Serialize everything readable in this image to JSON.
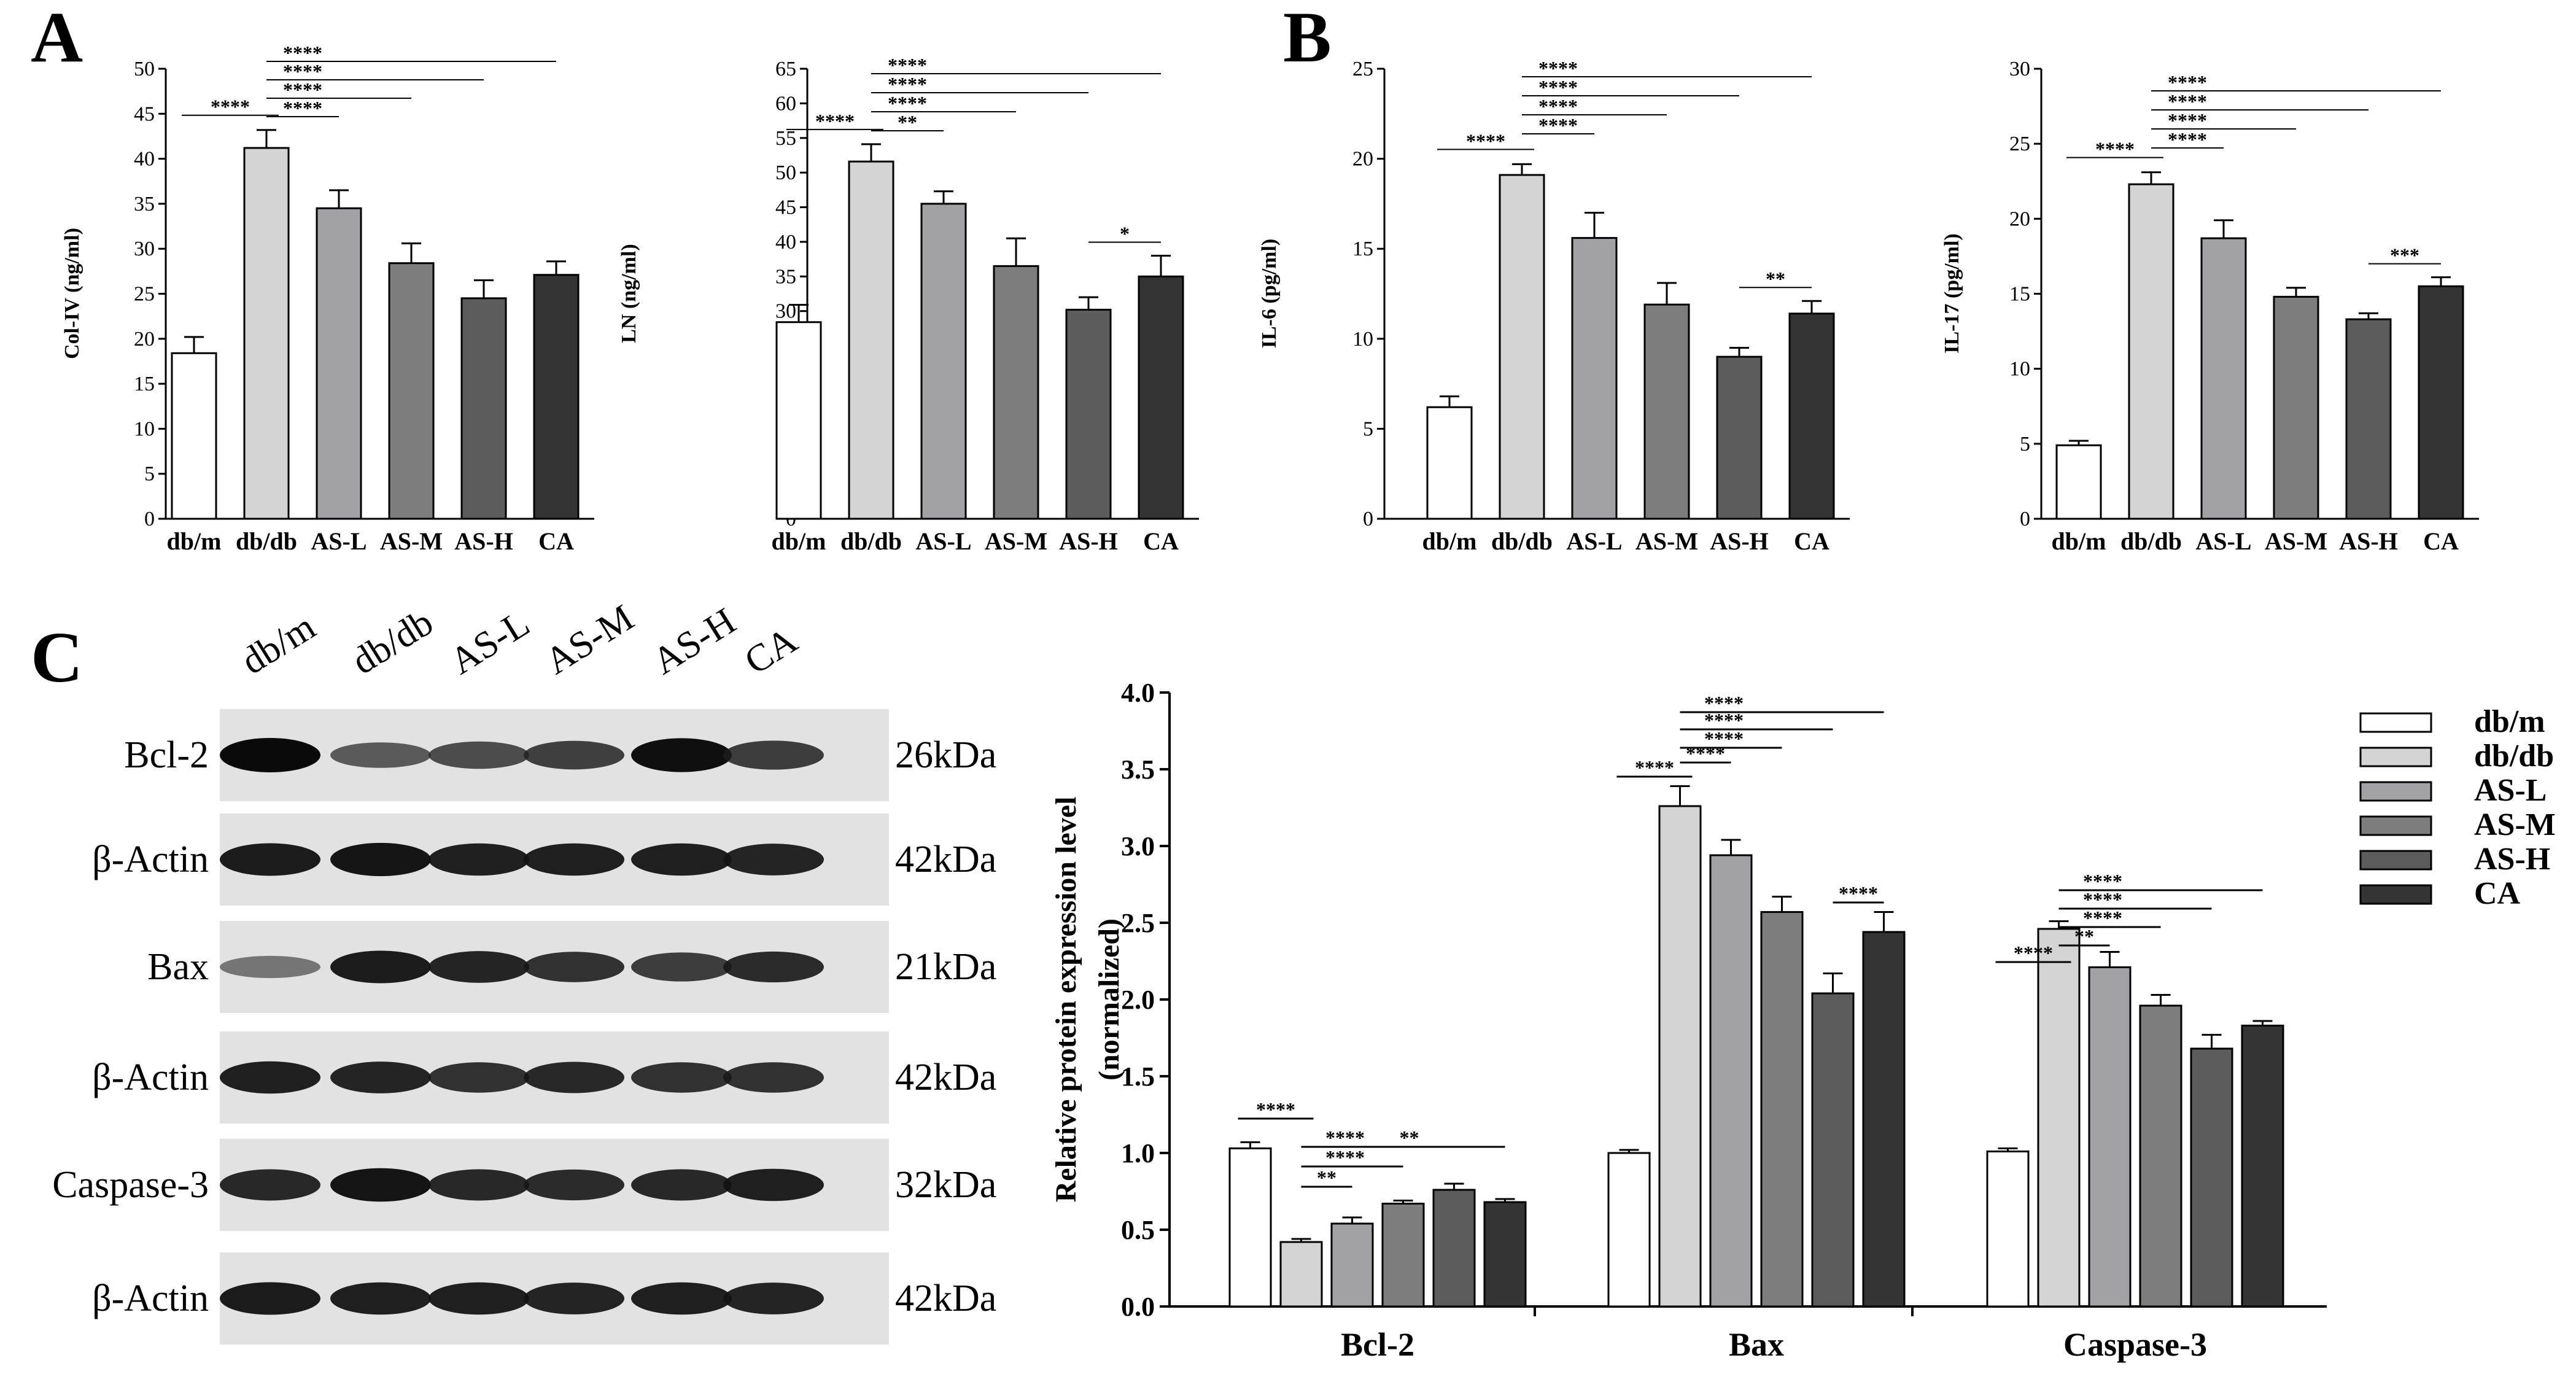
{
  "panels": {
    "A": "A",
    "B": "B",
    "C": "C"
  },
  "colors": {
    "db/m": "#ffffff",
    "db/db": "#d4d4d4",
    "AS-L": "#a2a2a6",
    "AS-M": "#7d7d7d",
    "AS-H": "#5c5c5c",
    "CA": "#343434"
  },
  "chart_data": [
    {
      "id": "colIV",
      "panel": "A",
      "type": "bar",
      "ylabel": "Col-IV (ng/ml)",
      "categories": [
        "db/m",
        "db/db",
        "AS-L",
        "AS-M",
        "AS-H",
        "CA"
      ],
      "values": [
        18.4,
        41.2,
        34.5,
        28.4,
        24.5,
        27.1
      ],
      "errors": [
        1.8,
        2.0,
        2.0,
        2.2,
        2.0,
        1.5
      ],
      "ylim": [
        0,
        50
      ],
      "yticks": [
        0,
        5,
        10,
        15,
        20,
        25,
        30,
        35,
        40,
        45,
        50
      ],
      "significance": [
        {
          "from": "db/m",
          "to": "db/db",
          "label": "****"
        },
        {
          "from": "db/db",
          "to": "AS-L",
          "label": "****"
        },
        {
          "from": "db/db",
          "to": "AS-M",
          "label": "****"
        },
        {
          "from": "db/db",
          "to": "AS-H",
          "label": "****"
        },
        {
          "from": "db/db",
          "to": "CA",
          "label": "****"
        }
      ]
    },
    {
      "id": "ln",
      "panel": "A",
      "type": "bar",
      "ylabel": "LN (ng/ml)",
      "categories": [
        "db/m",
        "db/db",
        "AS-L",
        "AS-M",
        "AS-H",
        "CA"
      ],
      "values": [
        28.4,
        51.6,
        45.5,
        36.5,
        30.2,
        35.0
      ],
      "errors": [
        2.5,
        2.5,
        1.8,
        4.0,
        1.8,
        3.0
      ],
      "ylim": [
        0,
        65
      ],
      "yticks": [
        0,
        5,
        10,
        15,
        20,
        25,
        30,
        35,
        40,
        45,
        50,
        55,
        60,
        65
      ],
      "significance": [
        {
          "from": "db/m",
          "to": "db/db",
          "label": "****"
        },
        {
          "from": "db/db",
          "to": "AS-L",
          "label": "**"
        },
        {
          "from": "db/db",
          "to": "AS-M",
          "label": "****"
        },
        {
          "from": "db/db",
          "to": "AS-H",
          "label": "****"
        },
        {
          "from": "db/db",
          "to": "CA",
          "label": "****"
        },
        {
          "from": "AS-H",
          "to": "CA",
          "label": "*"
        }
      ]
    },
    {
      "id": "il6",
      "panel": "B",
      "type": "bar",
      "ylabel": "IL-6 (pg/ml)",
      "categories": [
        "db/m",
        "db/db",
        "AS-L",
        "AS-M",
        "AS-H",
        "CA"
      ],
      "values": [
        6.2,
        19.1,
        15.6,
        11.9,
        9.0,
        11.4
      ],
      "errors": [
        0.6,
        0.6,
        1.4,
        1.2,
        0.5,
        0.7
      ],
      "ylim": [
        0,
        25
      ],
      "yticks": [
        0,
        5,
        10,
        15,
        20,
        25
      ],
      "significance": [
        {
          "from": "db/m",
          "to": "db/db",
          "label": "****"
        },
        {
          "from": "db/db",
          "to": "AS-L",
          "label": "****"
        },
        {
          "from": "db/db",
          "to": "AS-M",
          "label": "****"
        },
        {
          "from": "db/db",
          "to": "AS-H",
          "label": "****"
        },
        {
          "from": "db/db",
          "to": "CA",
          "label": "****"
        },
        {
          "from": "AS-H",
          "to": "CA",
          "label": "**"
        }
      ]
    },
    {
      "id": "il17",
      "panel": "B",
      "type": "bar",
      "ylabel": "IL-17 (pg/ml)",
      "categories": [
        "db/m",
        "db/db",
        "AS-L",
        "AS-M",
        "AS-H",
        "CA"
      ],
      "values": [
        4.9,
        22.3,
        18.7,
        14.8,
        13.3,
        15.5
      ],
      "errors": [
        0.3,
        0.8,
        1.2,
        0.6,
        0.4,
        0.6
      ],
      "ylim": [
        0,
        30
      ],
      "yticks": [
        0,
        5,
        10,
        15,
        20,
        25,
        30
      ],
      "significance": [
        {
          "from": "db/m",
          "to": "db/db",
          "label": "****"
        },
        {
          "from": "db/db",
          "to": "AS-L",
          "label": "****"
        },
        {
          "from": "db/db",
          "to": "AS-M",
          "label": "****"
        },
        {
          "from": "db/db",
          "to": "AS-H",
          "label": "****"
        },
        {
          "from": "db/db",
          "to": "CA",
          "label": "****"
        },
        {
          "from": "AS-H",
          "to": "CA",
          "label": "***"
        }
      ]
    },
    {
      "id": "protein",
      "panel": "C",
      "type": "bar",
      "ylabel": "Relative protein expression level",
      "ylabel2": "(normalized)",
      "groups": [
        "Bcl-2",
        "Bax",
        "Caspase-3"
      ],
      "series": [
        {
          "name": "db/m",
          "values": [
            1.03,
            1.0,
            1.01
          ],
          "errors": [
            0.04,
            0.02,
            0.02
          ]
        },
        {
          "name": "db/db",
          "values": [
            0.42,
            3.26,
            2.46
          ],
          "errors": [
            0.02,
            0.13,
            0.05
          ]
        },
        {
          "name": "AS-L",
          "values": [
            0.54,
            2.94,
            2.21
          ],
          "errors": [
            0.04,
            0.1,
            0.1
          ]
        },
        {
          "name": "AS-M",
          "values": [
            0.67,
            2.57,
            1.96
          ],
          "errors": [
            0.02,
            0.1,
            0.07
          ]
        },
        {
          "name": "AS-H",
          "values": [
            0.76,
            2.04,
            1.68
          ],
          "errors": [
            0.04,
            0.13,
            0.09
          ]
        },
        {
          "name": "CA",
          "values": [
            0.68,
            2.44,
            1.83
          ],
          "errors": [
            0.02,
            0.13,
            0.03
          ]
        }
      ],
      "ylim": [
        0,
        4.0
      ],
      "yticks": [
        "0.0",
        "0.5",
        "1.0",
        "1.5",
        "2.0",
        "2.5",
        "3.0",
        "3.5",
        "4.0"
      ],
      "legend": "right",
      "significance": [
        {
          "group": "Bcl-2",
          "from": "db/m",
          "to": "db/db",
          "label": "****"
        },
        {
          "group": "Bcl-2",
          "from": "db/db",
          "to": "AS-L",
          "label": "**"
        },
        {
          "group": "Bcl-2",
          "from": "db/db",
          "to": "AS-M",
          "label": "****"
        },
        {
          "group": "Bcl-2",
          "from": "db/db",
          "to": "AS-H",
          "label": "****"
        },
        {
          "group": "Bcl-2",
          "from": "db/db",
          "to": "CA",
          "label": "**"
        },
        {
          "group": "Bax",
          "from": "db/m",
          "to": "db/db",
          "label": "****"
        },
        {
          "group": "Bax",
          "from": "db/db",
          "to": "AS-L",
          "label": "****"
        },
        {
          "group": "Bax",
          "from": "db/db",
          "to": "AS-M",
          "label": "****"
        },
        {
          "group": "Bax",
          "from": "db/db",
          "to": "AS-H",
          "label": "****"
        },
        {
          "group": "Bax",
          "from": "db/db",
          "to": "CA",
          "label": "****"
        },
        {
          "group": "Bax",
          "from": "AS-H",
          "to": "CA",
          "label": "****"
        },
        {
          "group": "Caspase-3",
          "from": "db/m",
          "to": "db/db",
          "label": "****"
        },
        {
          "group": "Caspase-3",
          "from": "db/db",
          "to": "AS-L",
          "label": "**"
        },
        {
          "group": "Caspase-3",
          "from": "db/db",
          "to": "AS-M",
          "label": "****"
        },
        {
          "group": "Caspase-3",
          "from": "db/db",
          "to": "AS-H",
          "label": "****"
        },
        {
          "group": "Caspase-3",
          "from": "db/db",
          "to": "CA",
          "label": "****"
        }
      ]
    }
  ],
  "western_blot": {
    "lanes": [
      "db/m",
      "db/db",
      "AS-L",
      "AS-M",
      "AS-H",
      "CA"
    ],
    "rows": [
      {
        "protein": "Bcl-2",
        "size": "26kDa",
        "intensity": [
          1.0,
          0.6,
          0.68,
          0.74,
          0.98,
          0.76
        ]
      },
      {
        "protein": "β-Actin",
        "size": "42kDa",
        "intensity": [
          0.92,
          0.95,
          0.9,
          0.9,
          0.9,
          0.88
        ]
      },
      {
        "protein": "Bax",
        "size": "21kDa",
        "intensity": [
          0.45,
          0.92,
          0.88,
          0.82,
          0.76,
          0.84
        ]
      },
      {
        "protein": "β-Actin",
        "size": "42kDa",
        "intensity": [
          0.9,
          0.88,
          0.82,
          0.86,
          0.82,
          0.82
        ]
      },
      {
        "protein": "Caspase-3",
        "size": "32kDa",
        "intensity": [
          0.86,
          0.96,
          0.86,
          0.84,
          0.86,
          0.9
        ]
      },
      {
        "protein": "β-Actin",
        "size": "42kDa",
        "intensity": [
          0.92,
          0.9,
          0.9,
          0.88,
          0.9,
          0.88
        ]
      }
    ]
  }
}
